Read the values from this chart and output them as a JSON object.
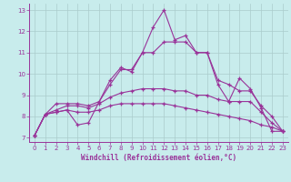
{
  "xlabel": "Windchill (Refroidissement éolien,°C)",
  "bg_color": "#c8ecec",
  "line_color": "#993399",
  "grid_color": "#aacccc",
  "xlim": [
    -0.5,
    23.5
  ],
  "ylim": [
    6.8,
    13.3
  ],
  "yticks": [
    7,
    8,
    9,
    10,
    11,
    12,
    13
  ],
  "xticks": [
    0,
    1,
    2,
    3,
    4,
    5,
    6,
    7,
    8,
    9,
    10,
    11,
    12,
    13,
    14,
    15,
    16,
    17,
    18,
    19,
    20,
    21,
    22,
    23
  ],
  "line1_x": [
    0,
    1,
    2,
    3,
    4,
    5,
    6,
    7,
    8,
    9,
    10,
    11,
    12,
    13,
    14,
    15,
    16,
    17,
    18,
    19,
    20,
    21,
    22,
    23
  ],
  "line1_y": [
    7.1,
    8.1,
    8.2,
    8.3,
    7.6,
    7.7,
    8.7,
    9.7,
    10.3,
    10.1,
    11.0,
    12.2,
    13.0,
    11.6,
    11.8,
    11.0,
    11.0,
    9.5,
    8.7,
    9.8,
    9.3,
    8.4,
    7.3,
    7.3
  ],
  "line2_x": [
    0,
    1,
    2,
    3,
    4,
    5,
    6,
    7,
    8,
    9,
    10,
    11,
    12,
    13,
    14,
    15,
    16,
    17,
    18,
    19,
    20,
    21,
    22,
    23
  ],
  "line2_y": [
    7.1,
    8.1,
    8.6,
    8.6,
    8.6,
    8.5,
    8.7,
    9.5,
    10.2,
    10.2,
    11.0,
    11.0,
    11.5,
    11.5,
    11.5,
    11.0,
    11.0,
    9.7,
    9.5,
    9.2,
    9.2,
    8.5,
    8.0,
    7.3
  ],
  "line3_x": [
    0,
    1,
    2,
    3,
    4,
    5,
    6,
    7,
    8,
    9,
    10,
    11,
    12,
    13,
    14,
    15,
    16,
    17,
    18,
    19,
    20,
    21,
    22,
    23
  ],
  "line3_y": [
    7.1,
    8.1,
    8.3,
    8.5,
    8.5,
    8.4,
    8.6,
    8.9,
    9.1,
    9.2,
    9.3,
    9.3,
    9.3,
    9.2,
    9.2,
    9.0,
    9.0,
    8.8,
    8.7,
    8.7,
    8.7,
    8.2,
    7.7,
    7.3
  ],
  "line4_x": [
    0,
    1,
    2,
    3,
    4,
    5,
    6,
    7,
    8,
    9,
    10,
    11,
    12,
    13,
    14,
    15,
    16,
    17,
    18,
    19,
    20,
    21,
    22,
    23
  ],
  "line4_y": [
    7.1,
    8.1,
    8.2,
    8.3,
    8.2,
    8.2,
    8.3,
    8.5,
    8.6,
    8.6,
    8.6,
    8.6,
    8.6,
    8.5,
    8.4,
    8.3,
    8.2,
    8.1,
    8.0,
    7.9,
    7.8,
    7.6,
    7.5,
    7.3
  ]
}
